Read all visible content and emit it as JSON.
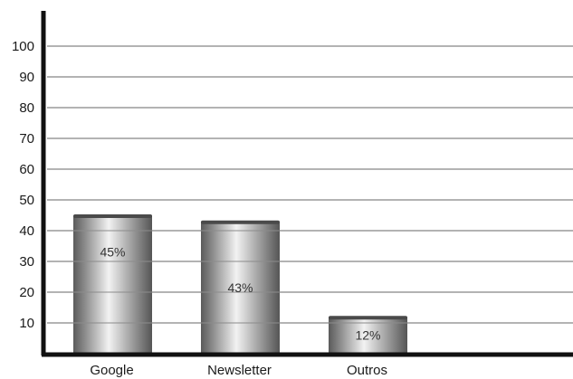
{
  "chart_data": {
    "type": "bar",
    "title": "",
    "xlabel": "",
    "ylabel": "",
    "categories": [
      "Google",
      "Newsletter",
      "Outros"
    ],
    "values": [
      45,
      43,
      12
    ],
    "data_labels": [
      "45%",
      "43%",
      "12%"
    ],
    "ylim": [
      0,
      100
    ],
    "yticks": [
      10,
      20,
      30,
      40,
      50,
      60,
      70,
      80,
      90,
      100
    ],
    "ytick_labels": [
      "10",
      "20",
      "30",
      "40",
      "50",
      "60",
      "70",
      "80",
      "90",
      "100"
    ],
    "grid": true,
    "legend": "none"
  },
  "colors": {
    "axis": "#111111",
    "grid": "#9a9a9a",
    "bar_dark": "#5a5a5a",
    "bar_light": "#f2f2f2",
    "bar_top": "#4a4a4a"
  }
}
